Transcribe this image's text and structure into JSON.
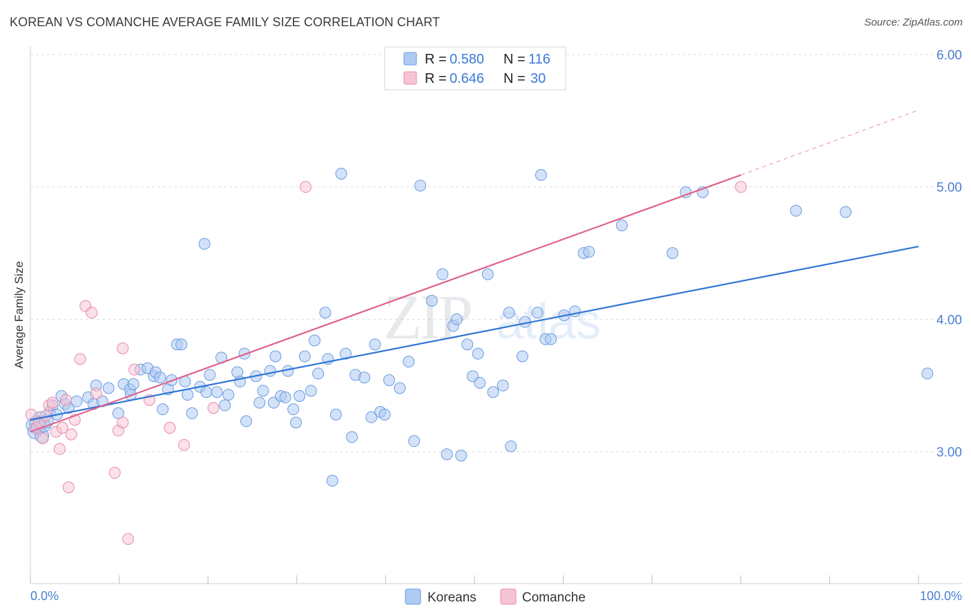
{
  "header": {
    "title": "KOREAN VS COMANCHE AVERAGE FAMILY SIZE CORRELATION CHART",
    "source": "Source: ZipAtlas.com"
  },
  "legend": {
    "korean_r_label": "R =",
    "korean_r": "0.580",
    "korean_n_label": "N =",
    "korean_n": "116",
    "comanche_r_label": "R =",
    "comanche_r": "0.646",
    "comanche_n_label": "N =",
    "comanche_n": "30"
  },
  "bottom_legend": {
    "koreans": "Koreans",
    "comanche": "Comanche"
  },
  "watermark": {
    "zip": "ZIP",
    "atlas": "atlas"
  },
  "colors": {
    "korean_fill": "#aecbf2",
    "korean_stroke": "#6a9be0",
    "korean_line": "#2f74d6",
    "comanche_fill": "#f7c4d4",
    "comanche_stroke": "#e88aa8",
    "comanche_line": "#e0608a",
    "tick_text": "#4a7fd4",
    "grid": "#dddddd"
  },
  "chart_data": {
    "type": "scatter",
    "title": "KOREAN VS COMANCHE AVERAGE FAMILY SIZE CORRELATION CHART",
    "xlabel": "",
    "ylabel": "Average Family Size",
    "xlim": [
      0,
      100
    ],
    "ylim": [
      2.0,
      6.1
    ],
    "x_tick_labels": [
      "0.0%",
      "100.0%"
    ],
    "y_ticks": [
      3.0,
      4.0,
      5.0,
      6.0
    ],
    "y_tick_labels": [
      "3.00",
      "4.00",
      "5.00",
      "6.00"
    ],
    "grid": true,
    "legend_position": "top-center",
    "series": [
      {
        "name": "Koreans",
        "r": 0.58,
        "n": 116,
        "trend": {
          "x0": 0,
          "y0": 3.24,
          "x1": 100,
          "y1": 4.55
        },
        "points": [
          [
            0.3,
            3.2
          ],
          [
            0.5,
            3.15
          ],
          [
            0.7,
            3.22
          ],
          [
            0.9,
            3.18
          ],
          [
            1.1,
            3.25
          ],
          [
            1.3,
            3.12
          ],
          [
            1.5,
            3.2
          ],
          [
            1.8,
            3.23
          ],
          [
            2.2,
            3.3
          ],
          [
            2.5,
            3.35
          ],
          [
            3.0,
            3.28
          ],
          [
            3.5,
            3.42
          ],
          [
            3.9,
            3.36
          ],
          [
            4.3,
            3.33
          ],
          [
            5.2,
            3.38
          ],
          [
            6.5,
            3.41
          ],
          [
            7.1,
            3.36
          ],
          [
            7.4,
            3.5
          ],
          [
            8.1,
            3.38
          ],
          [
            8.8,
            3.48
          ],
          [
            9.9,
            3.29
          ],
          [
            10.5,
            3.51
          ],
          [
            11.2,
            3.47
          ],
          [
            11.3,
            3.43
          ],
          [
            11.6,
            3.51
          ],
          [
            12.4,
            3.62
          ],
          [
            13.2,
            3.63
          ],
          [
            13.9,
            3.57
          ],
          [
            14.1,
            3.6
          ],
          [
            14.6,
            3.56
          ],
          [
            14.9,
            3.32
          ],
          [
            15.5,
            3.47
          ],
          [
            15.9,
            3.54
          ],
          [
            16.5,
            3.81
          ],
          [
            17.0,
            3.81
          ],
          [
            17.4,
            3.53
          ],
          [
            17.7,
            3.43
          ],
          [
            18.2,
            3.29
          ],
          [
            19.1,
            3.49
          ],
          [
            19.6,
            4.57
          ],
          [
            19.8,
            3.45
          ],
          [
            20.2,
            3.58
          ],
          [
            21.0,
            3.45
          ],
          [
            21.5,
            3.71
          ],
          [
            21.9,
            3.35
          ],
          [
            22.3,
            3.43
          ],
          [
            23.3,
            3.6
          ],
          [
            23.6,
            3.53
          ],
          [
            24.1,
            3.74
          ],
          [
            24.3,
            3.23
          ],
          [
            25.4,
            3.57
          ],
          [
            25.8,
            3.37
          ],
          [
            26.2,
            3.46
          ],
          [
            27.0,
            3.61
          ],
          [
            27.4,
            3.37
          ],
          [
            27.6,
            3.72
          ],
          [
            28.2,
            3.42
          ],
          [
            28.7,
            3.41
          ],
          [
            29.0,
            3.61
          ],
          [
            29.6,
            3.32
          ],
          [
            29.9,
            3.22
          ],
          [
            30.3,
            3.42
          ],
          [
            30.9,
            3.72
          ],
          [
            31.6,
            3.46
          ],
          [
            32.0,
            3.84
          ],
          [
            32.4,
            3.59
          ],
          [
            33.2,
            4.05
          ],
          [
            33.5,
            3.7
          ],
          [
            34.0,
            2.78
          ],
          [
            34.4,
            3.28
          ],
          [
            35.0,
            5.1
          ],
          [
            35.5,
            3.74
          ],
          [
            36.2,
            3.11
          ],
          [
            36.6,
            3.58
          ],
          [
            37.6,
            3.56
          ],
          [
            38.4,
            3.26
          ],
          [
            38.8,
            3.81
          ],
          [
            39.4,
            3.3
          ],
          [
            39.9,
            3.28
          ],
          [
            40.4,
            3.54
          ],
          [
            41.6,
            3.48
          ],
          [
            42.6,
            3.68
          ],
          [
            43.2,
            3.08
          ],
          [
            43.9,
            5.01
          ],
          [
            45.2,
            4.14
          ],
          [
            46.4,
            4.34
          ],
          [
            46.9,
            2.98
          ],
          [
            47.6,
            3.95
          ],
          [
            48.0,
            4.0
          ],
          [
            48.5,
            2.97
          ],
          [
            49.2,
            3.81
          ],
          [
            49.8,
            3.57
          ],
          [
            50.4,
            3.74
          ],
          [
            50.6,
            3.52
          ],
          [
            51.5,
            4.34
          ],
          [
            52.1,
            3.45
          ],
          [
            53.2,
            3.5
          ],
          [
            53.9,
            4.05
          ],
          [
            54.1,
            3.04
          ],
          [
            55.4,
            3.72
          ],
          [
            55.7,
            3.98
          ],
          [
            57.1,
            4.05
          ],
          [
            57.5,
            5.09
          ],
          [
            58.0,
            3.85
          ],
          [
            58.6,
            3.85
          ],
          [
            60.1,
            4.03
          ],
          [
            61.3,
            4.06
          ],
          [
            62.3,
            4.5
          ],
          [
            62.9,
            4.51
          ],
          [
            66.6,
            4.71
          ],
          [
            72.3,
            4.5
          ],
          [
            73.8,
            4.96
          ],
          [
            75.7,
            4.96
          ],
          [
            86.2,
            4.82
          ],
          [
            91.8,
            4.81
          ],
          [
            101.0,
            3.59
          ]
        ]
      },
      {
        "name": "Comanche",
        "r": 0.646,
        "n": 30,
        "trend": {
          "x0": 0,
          "y0": 3.15,
          "x1": 80,
          "y1": 5.09
        },
        "trend_extension": {
          "x0": 80,
          "y0": 5.09,
          "x1": 100,
          "y1": 5.58
        },
        "points": [
          [
            0.1,
            3.28
          ],
          [
            0.6,
            3.18
          ],
          [
            1.0,
            3.22
          ],
          [
            1.4,
            3.1
          ],
          [
            1.7,
            3.27
          ],
          [
            2.1,
            3.35
          ],
          [
            2.5,
            3.37
          ],
          [
            2.9,
            3.15
          ],
          [
            3.3,
            3.02
          ],
          [
            3.6,
            3.18
          ],
          [
            4.0,
            3.39
          ],
          [
            4.3,
            2.73
          ],
          [
            4.6,
            3.13
          ],
          [
            5.0,
            3.24
          ],
          [
            5.6,
            3.7
          ],
          [
            6.2,
            4.1
          ],
          [
            6.9,
            4.05
          ],
          [
            7.4,
            3.44
          ],
          [
            9.5,
            2.84
          ],
          [
            9.9,
            3.16
          ],
          [
            10.4,
            3.22
          ],
          [
            10.4,
            3.78
          ],
          [
            11.0,
            2.34
          ],
          [
            11.7,
            3.62
          ],
          [
            13.4,
            3.39
          ],
          [
            15.7,
            3.18
          ],
          [
            17.3,
            3.05
          ],
          [
            20.6,
            3.33
          ],
          [
            31.0,
            5.0
          ],
          [
            80.0,
            5.0
          ]
        ]
      }
    ]
  }
}
